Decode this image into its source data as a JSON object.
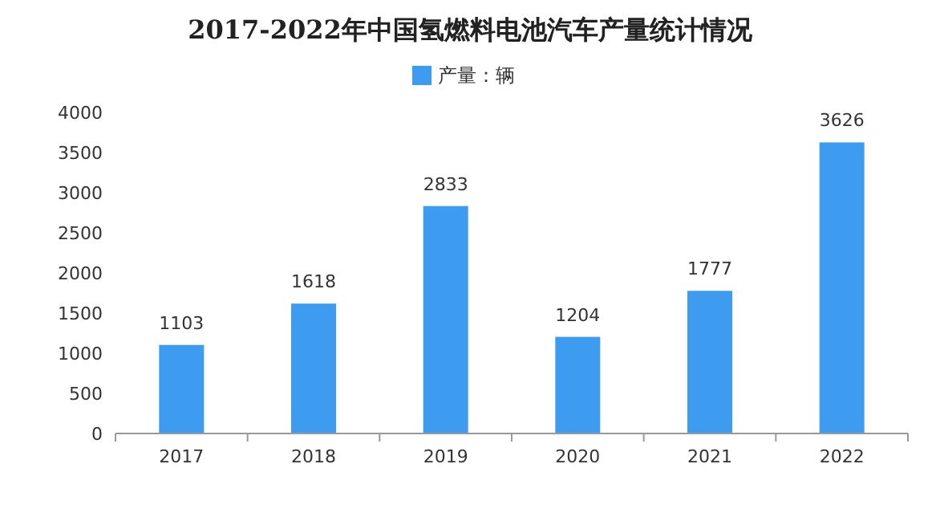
{
  "chart_data": {
    "type": "bar",
    "title": "2017-2022年中国氢燃料电池汽车产量统计情况",
    "categories": [
      "2017",
      "2018",
      "2019",
      "2020",
      "2021",
      "2022"
    ],
    "series": [
      {
        "name": "产量：辆",
        "color": "#3d9cf0",
        "values": [
          1103,
          1618,
          2833,
          1204,
          1777,
          3626
        ]
      }
    ],
    "ylim": [
      0,
      4000
    ],
    "yticks": [
      0,
      500,
      1000,
      1500,
      2000,
      2500,
      3000,
      3500,
      4000
    ],
    "grid": false,
    "legend": "top",
    "data_labels": true
  }
}
